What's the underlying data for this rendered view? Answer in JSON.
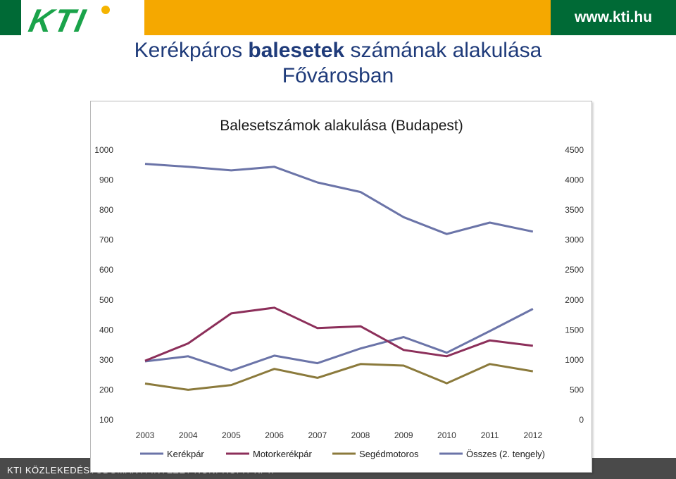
{
  "header": {
    "logo_text": "KTI",
    "url": "www.kti.hu"
  },
  "slide": {
    "title_part1": "Kerékpáros ",
    "title_bold": "balesetek",
    "title_part2": " számának alakulása",
    "title_line2": "Fővárosban"
  },
  "footer": {
    "text": "KTI KÖZLEKEDÉSTUDOMÁNYI INTÉZET NONPROFIT KFT."
  },
  "chart_data": {
    "type": "line",
    "title": "Balesetszámok alakulása (Budapest)",
    "categories": [
      "2003",
      "2004",
      "2005",
      "2006",
      "2007",
      "2008",
      "2009",
      "2010",
      "2011",
      "2012"
    ],
    "y_left": {
      "min": 100,
      "max": 1000,
      "ticks": [
        "1000",
        "900",
        "800",
        "700",
        "600",
        "500",
        "400",
        "300",
        "200",
        "100"
      ]
    },
    "y_right": {
      "min": 0,
      "max": 4500,
      "ticks": [
        "4500",
        "4000",
        "3500",
        "3000",
        "2500",
        "2000",
        "1500",
        "1000",
        "500",
        "0"
      ]
    },
    "grid": false,
    "legend": "bottom",
    "series": [
      {
        "name": "Kerékpár",
        "axis": "left",
        "color": "#6b74a8",
        "values": [
          295,
          312,
          264,
          314,
          289,
          338,
          376,
          324,
          396,
          470
        ]
      },
      {
        "name": "Motorkerékpár",
        "axis": "left",
        "color": "#8c2f5a",
        "values": [
          297,
          355,
          455,
          474,
          406,
          412,
          333,
          312,
          365,
          347
        ]
      },
      {
        "name": "Segédmotoros",
        "axis": "left",
        "color": "#8b7a3c",
        "values": [
          221,
          200,
          216,
          270,
          240,
          286,
          281,
          222,
          286,
          262
        ]
      },
      {
        "name": "Összes (2. tengely)",
        "axis": "right",
        "color": "#6b74a8",
        "values": [
          4270,
          4220,
          4160,
          4220,
          3960,
          3800,
          3380,
          3100,
          3290,
          3140
        ]
      }
    ]
  }
}
